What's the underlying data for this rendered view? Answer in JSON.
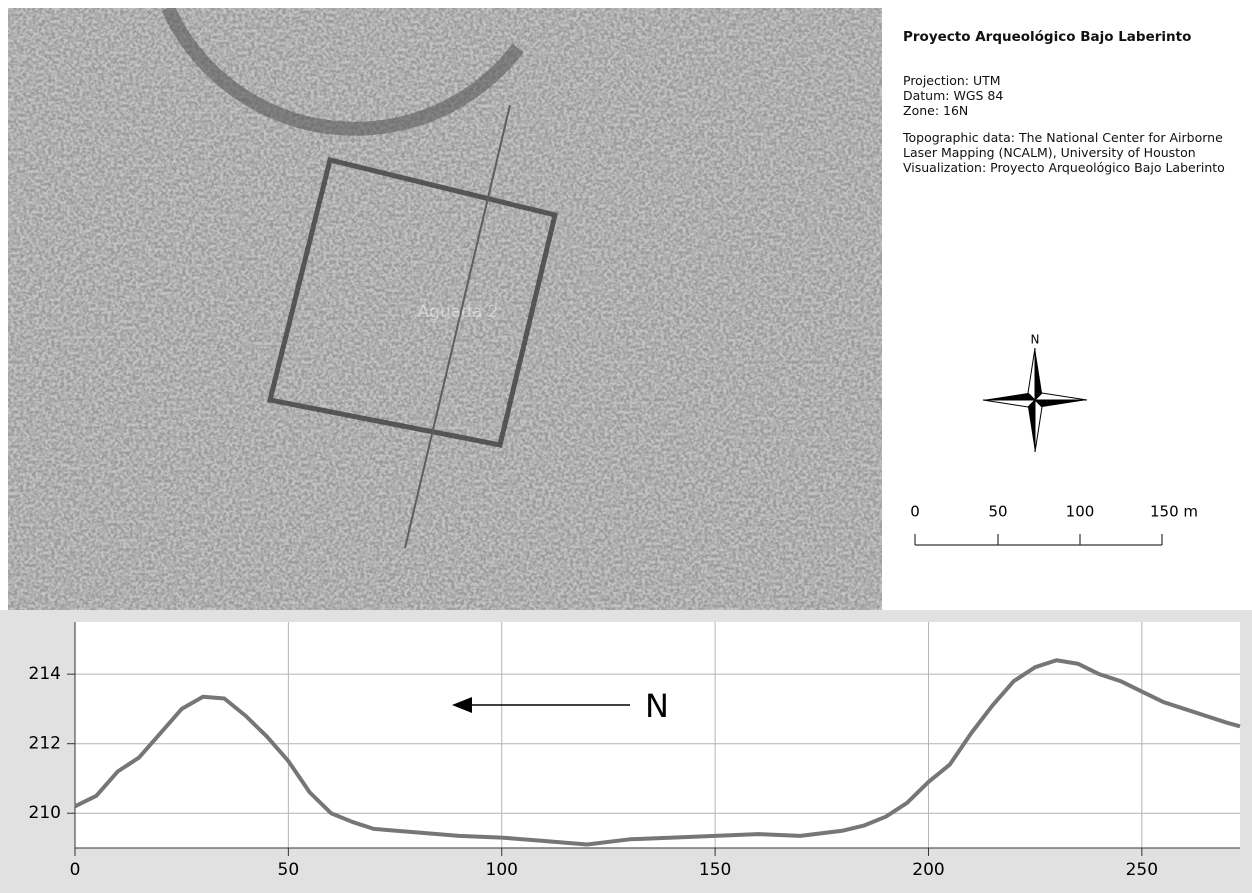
{
  "map": {
    "label": "Aguada 2"
  },
  "legend": {
    "title": "Proyecto Arqueológico Bajo Laberinto",
    "projection": [
      "Projection: UTM",
      "Datum: WGS 84",
      "Zone: 16N"
    ],
    "credits": [
      "Topographic data: The National Center for Airborne Laser Mapping (NCALM), University of Houston",
      "Visualization: Proyecto Arqueológico Bajo Laberinto"
    ]
  },
  "compass": {
    "label": "N"
  },
  "scale_bar": {
    "labels": [
      "0",
      "50",
      "100",
      "150 m"
    ]
  },
  "chart_data": {
    "type": "line",
    "annotation": "N",
    "series": [
      {
        "color": "#767676",
        "x": [
          0,
          5,
          10,
          15,
          20,
          25,
          30,
          35,
          40,
          45,
          50,
          55,
          60,
          65,
          70,
          80,
          90,
          100,
          110,
          120,
          130,
          140,
          150,
          160,
          170,
          180,
          185,
          190,
          195,
          200,
          205,
          210,
          215,
          220,
          225,
          230,
          235,
          240,
          245,
          250,
          255,
          260,
          265,
          270,
          273
        ],
        "values": [
          210.2,
          210.5,
          211.2,
          211.6,
          212.3,
          213.0,
          213.35,
          213.3,
          212.8,
          212.2,
          211.5,
          210.6,
          210.0,
          209.75,
          209.55,
          209.45,
          209.35,
          209.3,
          209.2,
          209.1,
          209.25,
          209.3,
          209.35,
          209.4,
          209.35,
          209.5,
          209.65,
          209.9,
          210.3,
          210.9,
          211.4,
          212.3,
          213.1,
          213.8,
          214.2,
          214.4,
          214.3,
          214.0,
          213.8,
          213.5,
          213.2,
          213.0,
          212.8,
          212.6,
          212.5
        ]
      }
    ],
    "xlim": [
      0,
      273
    ],
    "xticks": [
      0,
      50,
      100,
      150,
      200,
      250
    ],
    "ylim": [
      209,
      215.5
    ],
    "yticks": [
      210,
      212,
      214
    ],
    "grid": true
  }
}
